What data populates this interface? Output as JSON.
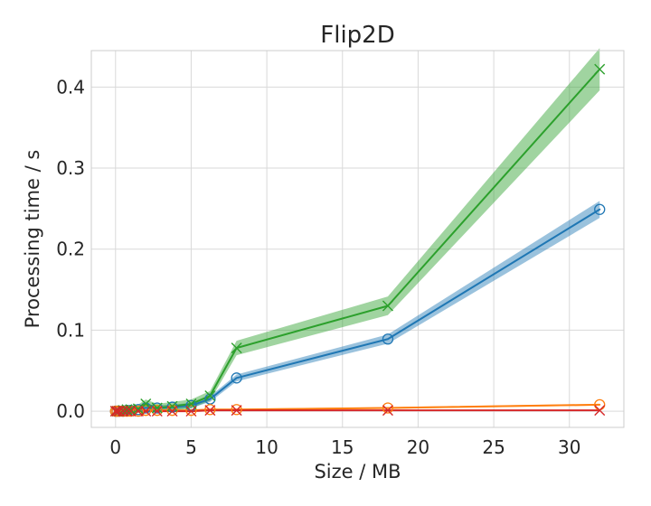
{
  "chart_data": {
    "type": "line",
    "title": "Flip2D",
    "xlabel": "Size / MB",
    "ylabel": "Processing time / s",
    "xlim": [
      -1.6,
      33.6
    ],
    "ylim": [
      -0.02,
      0.445
    ],
    "xticks": [
      0,
      5,
      10,
      15,
      20,
      25,
      30
    ],
    "yticks": [
      0.0,
      0.1,
      0.2,
      0.3,
      0.4
    ],
    "xtick_labels": [
      "0",
      "5",
      "10",
      "15",
      "20",
      "25",
      "30"
    ],
    "ytick_labels": [
      "0.0",
      "0.1",
      "0.2",
      "0.3",
      "0.4"
    ],
    "grid": true,
    "legend": "none",
    "series": [
      {
        "color": "#1f77b4",
        "marker": "circle",
        "band": 0.003,
        "x": [
          0.0,
          0.1,
          0.25,
          0.5,
          0.75,
          1.0,
          1.5,
          2.0,
          2.75,
          3.75,
          5.0,
          6.25,
          8.0,
          18.0,
          32.0
        ],
        "y": [
          0.0,
          0.0,
          0.0,
          0.0,
          0.001,
          0.001,
          0.002,
          0.004,
          0.004,
          0.005,
          0.007,
          0.015,
          0.041,
          0.089,
          0.249
        ]
      },
      {
        "color": "#ff7f0e",
        "marker": "circle",
        "band": 0.001,
        "x": [
          0.0,
          0.1,
          0.25,
          0.5,
          0.75,
          1.0,
          1.5,
          2.0,
          2.75,
          3.75,
          5.0,
          6.25,
          8.0,
          18.0,
          32.0
        ],
        "y": [
          0.0,
          0.0,
          0.0,
          0.0,
          0.0,
          0.0,
          0.0,
          0.001,
          0.001,
          0.001,
          0.001,
          0.002,
          0.002,
          0.004,
          0.008
        ]
      },
      {
        "color": "#2ca02c",
        "marker": "x",
        "band": 0.005,
        "x": [
          0.0,
          0.1,
          0.25,
          0.5,
          0.75,
          1.0,
          1.5,
          2.0,
          2.75,
          3.75,
          5.0,
          6.25,
          8.0,
          18.0,
          32.0
        ],
        "y": [
          0.0,
          0.0,
          0.0,
          0.001,
          0.002,
          0.002,
          0.003,
          0.009,
          0.004,
          0.006,
          0.009,
          0.019,
          0.078,
          0.13,
          0.422
        ]
      },
      {
        "color": "#d62728",
        "marker": "x",
        "band": 0.0005,
        "x": [
          0.0,
          0.1,
          0.25,
          0.5,
          0.75,
          1.0,
          1.5,
          2.0,
          2.75,
          3.75,
          5.0,
          6.25,
          8.0,
          18.0,
          32.0
        ],
        "y": [
          0.0,
          0.0,
          0.0,
          0.0,
          0.0,
          0.0,
          0.0,
          0.0,
          0.0,
          0.0,
          0.0,
          0.001,
          0.001,
          0.001,
          0.001
        ]
      }
    ]
  }
}
